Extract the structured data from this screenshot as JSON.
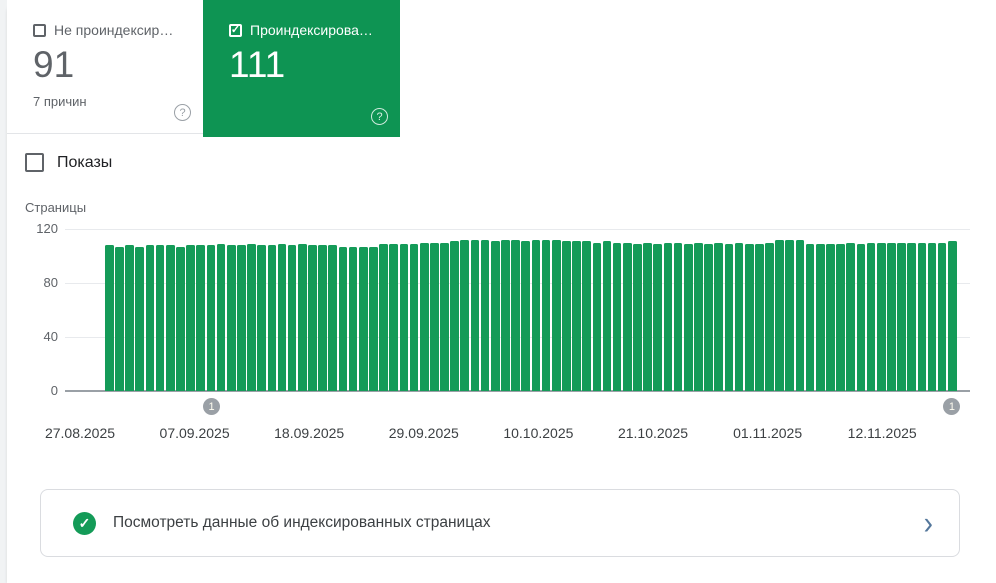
{
  "colors": {
    "selected_card_green": "#0e9453",
    "bar_green": "#149b58",
    "banner_check_green": "#149b58",
    "marker_gray": "#9aa0a6"
  },
  "cards": [
    {
      "label": "Не проиндексир…",
      "value": "91",
      "sublabel": "7 причин",
      "checked": false,
      "selected": false,
      "help_icon": "?"
    },
    {
      "label": "Проиндексирова…",
      "value": "111",
      "sublabel": "",
      "checked": true,
      "selected": true,
      "help_icon": "?",
      "check_glyph": "✓"
    }
  ],
  "impressions": {
    "label": "Показы",
    "checked": false
  },
  "chart_data": {
    "type": "bar",
    "title": "",
    "xlabel": "",
    "ylabel": "Страницы",
    "ylim": [
      0,
      120
    ],
    "yticks": [
      120,
      80,
      40,
      0
    ],
    "grid": true,
    "x_tick_labels": [
      "27.08.2025",
      "07.09.2025",
      "18.09.2025",
      "29.09.2025",
      "10.10.2025",
      "21.10.2025",
      "01.11.2025",
      "12.11.2025"
    ],
    "bar_color": "#149b58",
    "series": [
      {
        "name": "Проиндексировано (страницы)",
        "values": [
          108,
          107,
          108,
          107,
          108,
          108,
          108,
          107,
          108,
          108,
          108,
          109,
          108,
          108,
          109,
          108,
          108,
          109,
          108,
          109,
          108,
          108,
          108,
          107,
          107,
          107,
          107,
          109,
          109,
          109,
          109,
          110,
          110,
          110,
          111,
          112,
          112,
          112,
          111,
          112,
          112,
          111,
          112,
          112,
          112,
          111,
          111,
          111,
          110,
          111,
          110,
          110,
          109,
          110,
          109,
          110,
          110,
          109,
          110,
          109,
          110,
          109,
          110,
          109,
          109,
          110,
          112,
          112,
          112,
          109,
          109,
          109,
          109,
          110,
          109,
          110,
          110,
          110,
          110,
          110,
          110,
          110,
          110,
          111
        ]
      }
    ],
    "markers": [
      {
        "label": "1",
        "bar_index": 10
      },
      {
        "label": "1",
        "bar_index": 83
      }
    ]
  },
  "banner": {
    "text": "Посмотреть данные об индексированных страницах",
    "icon": "check-circle",
    "chevron": "›"
  }
}
